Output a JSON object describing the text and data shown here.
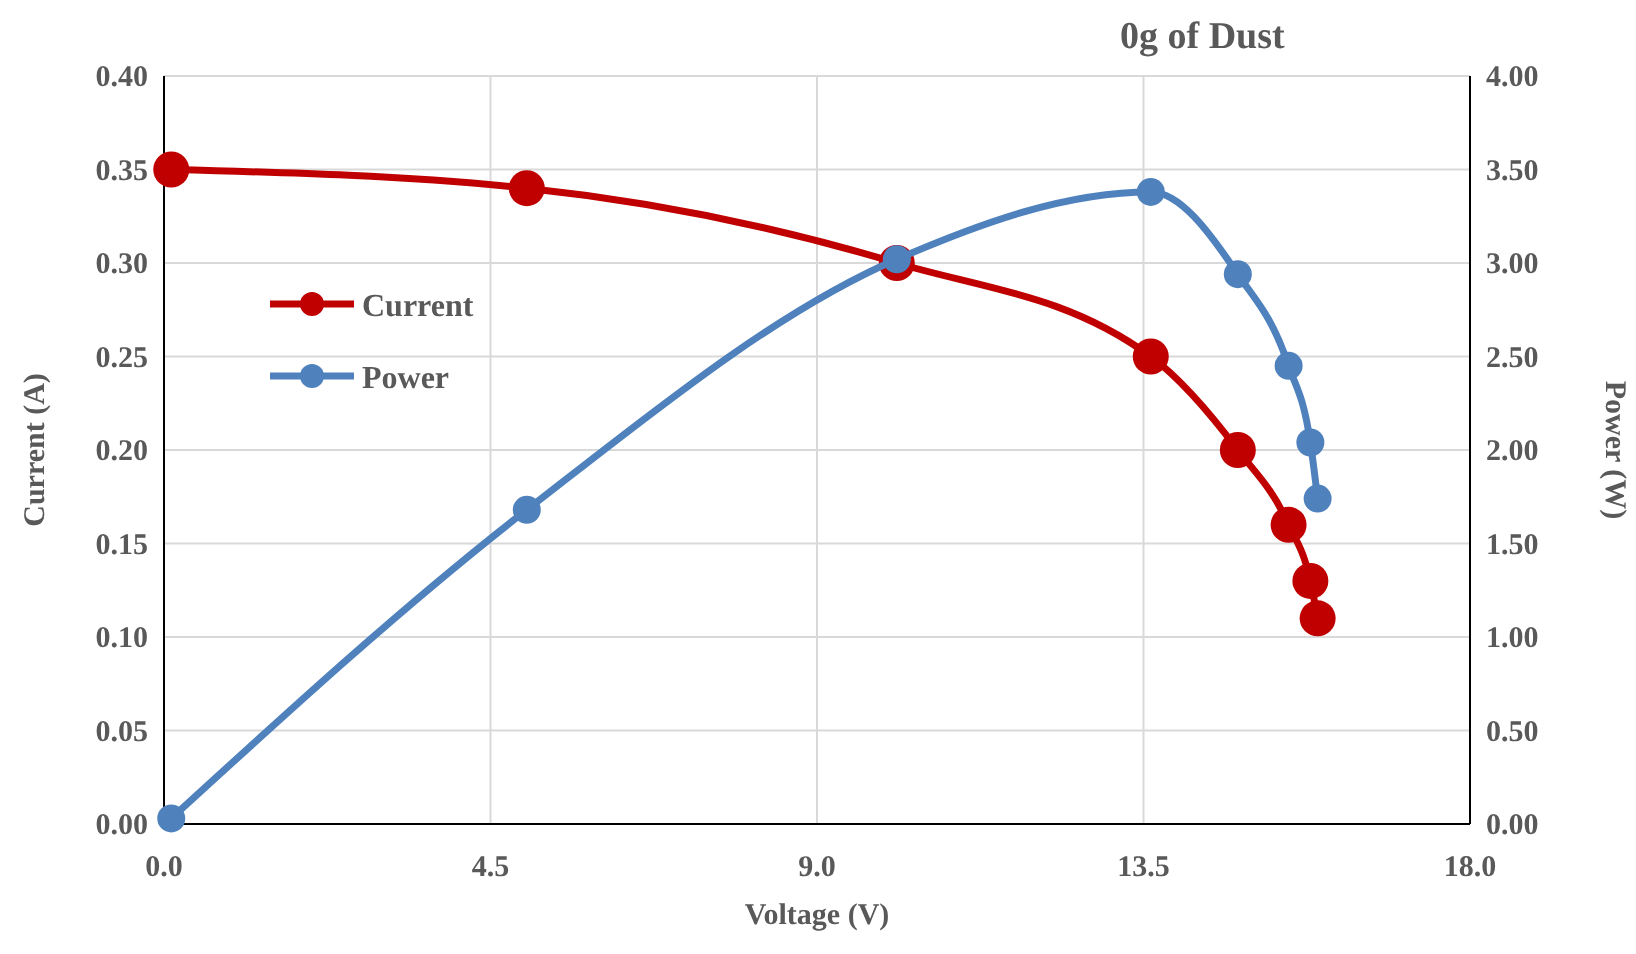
{
  "chart_data": {
    "type": "line",
    "title": "0g of Dust",
    "xlabel": "Voltage (V)",
    "ylabel": "Current (A)",
    "y2label": "Power (W)",
    "xlim": [
      0,
      18
    ],
    "xticks": [
      {
        "value": 0,
        "label": "0.0"
      },
      4.5,
      {
        "value": 9,
        "label": "9.0"
      },
      13.5,
      {
        "value": 18,
        "label": "18.0"
      }
    ],
    "ylim": [
      0,
      0.4
    ],
    "yticks": [
      {
        "value": 0,
        "label": "0.00"
      },
      {
        "value": 0.05,
        "label": "0.05"
      },
      {
        "value": 0.1,
        "label": "0.10"
      },
      {
        "value": 0.15,
        "label": "0.15"
      },
      {
        "value": 0.2,
        "label": "0.20"
      },
      {
        "value": 0.25,
        "label": "0.25"
      },
      {
        "value": 0.3,
        "label": "0.30"
      },
      {
        "value": 0.35,
        "label": "0.35"
      },
      {
        "value": 0.4,
        "label": "0.40"
      }
    ],
    "y2lim": [
      0,
      4
    ],
    "y2ticks": [
      {
        "value": 0,
        "label": "0.00"
      },
      {
        "value": 0.5,
        "label": "0.50"
      },
      {
        "value": 1,
        "label": "1.00"
      },
      {
        "value": 1.5,
        "label": "1.50"
      },
      {
        "value": 2,
        "label": "2.00"
      },
      {
        "value": 2.5,
        "label": "2.50"
      },
      {
        "value": 3,
        "label": "3.00"
      },
      {
        "value": 3.5,
        "label": "3.50"
      },
      {
        "value": 4,
        "label": "4.00"
      }
    ],
    "grid": true,
    "legend": "left",
    "marker": "circle",
    "line_style": "solid",
    "series": [
      {
        "name": "Current",
        "color": "#c00000",
        "x": [
          0.1,
          5.0,
          10.1,
          13.6,
          14.8,
          15.5,
          15.8,
          15.9
        ],
        "values": [
          0.35,
          0.34,
          0.3,
          0.25,
          0.2,
          0.16,
          0.13,
          0.11
        ]
      },
      {
        "name": "Power",
        "color": "#4f81bd",
        "axis": "y2",
        "x": [
          0.1,
          5.0,
          10.1,
          13.6,
          14.8,
          15.5,
          15.8,
          15.9
        ],
        "values": [
          0.03,
          1.68,
          3.02,
          3.38,
          2.94,
          2.45,
          2.04,
          1.74
        ]
      }
    ]
  }
}
